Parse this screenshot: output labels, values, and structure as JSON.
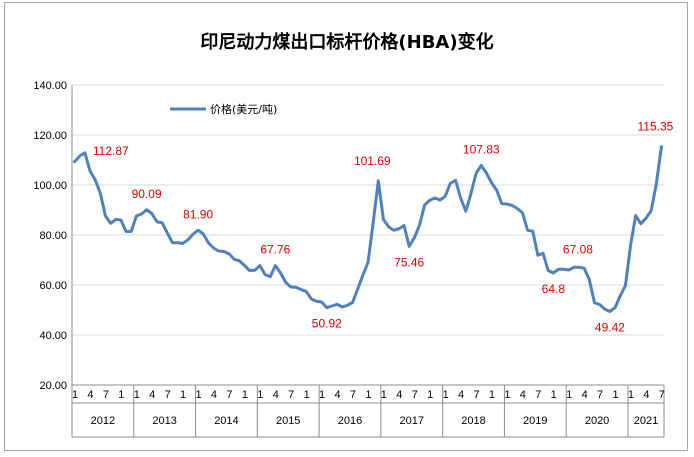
{
  "chart_data": {
    "type": "line",
    "title": "印尼动力煤出口标杆价格(HBA)变化",
    "legend": "价格(美元/吨)",
    "legend_position": "top-left",
    "series_color": "#4f81bd",
    "label_color": "#e00000",
    "ylim": [
      20,
      140
    ],
    "yticks": [
      "20.00",
      "40.00",
      "60.00",
      "80.00",
      "100.00",
      "120.00",
      "140.00"
    ],
    "gridlines": true,
    "years": [
      "2012",
      "2013",
      "2014",
      "2015",
      "2016",
      "2017",
      "2018",
      "2019",
      "2020",
      "2021"
    ],
    "month_ticks": [
      "1",
      "4",
      "7",
      "1"
    ],
    "last_year_ticks": [
      "1",
      "4",
      "7"
    ],
    "series": [
      {
        "name": "价格(美元/吨)",
        "values": [
          109.3,
          111.6,
          112.87,
          105.6,
          102.1,
          96.7,
          87.6,
          84.7,
          86.2,
          86.0,
          81.4,
          81.4,
          87.6,
          88.4,
          90.09,
          88.6,
          85.3,
          84.9,
          80.9,
          76.9,
          76.9,
          76.6,
          78.0,
          80.3,
          81.9,
          80.4,
          76.9,
          74.8,
          73.6,
          73.4,
          72.5,
          70.3,
          69.7,
          67.8,
          65.8,
          65.9,
          67.76,
          64.2,
          63.3,
          67.76,
          64.9,
          61.1,
          59.2,
          59.1,
          58.2,
          57.4,
          54.4,
          53.5,
          53.2,
          50.92,
          51.6,
          52.3,
          51.2,
          51.9,
          53.0,
          58.4,
          63.9,
          69.0,
          84.9,
          101.69,
          86.2,
          83.3,
          81.9,
          82.5,
          83.8,
          75.46,
          78.9,
          83.9,
          92.0,
          93.9,
          94.8,
          94.0,
          95.5,
          100.7,
          101.9,
          94.8,
          89.5,
          96.6,
          104.7,
          107.83,
          104.8,
          100.9,
          97.9,
          92.5,
          92.4,
          91.8,
          90.6,
          88.9,
          81.9,
          81.5,
          71.9,
          72.7,
          65.8,
          64.8,
          66.3,
          66.3,
          66.0,
          67.08,
          67.08,
          66.7,
          62.1,
          52.9,
          52.2,
          50.3,
          49.42,
          51.0,
          55.7,
          59.7,
          75.8,
          87.8,
          84.5,
          86.7,
          89.7,
          100.3,
          115.35
        ]
      }
    ],
    "annotations": [
      {
        "index": 2,
        "text": "112.87",
        "anchor": "right"
      },
      {
        "index": 14,
        "text": "90.09",
        "anchor": "above"
      },
      {
        "index": 24,
        "text": "81.90",
        "anchor": "above"
      },
      {
        "index": 39,
        "text": "67.76",
        "anchor": "above"
      },
      {
        "index": 49,
        "text": "50.92",
        "anchor": "below"
      },
      {
        "index": 59,
        "text": "101.69",
        "anchor": "above-left"
      },
      {
        "index": 65,
        "text": "75.46",
        "anchor": "below"
      },
      {
        "index": 79,
        "text": "107.83",
        "anchor": "above"
      },
      {
        "index": 93,
        "text": "64.8",
        "anchor": "below"
      },
      {
        "index": 97,
        "text": "67.08",
        "anchor": "above-right"
      },
      {
        "index": 104,
        "text": "49.42",
        "anchor": "below"
      },
      {
        "index": 114,
        "text": "115.35",
        "anchor": "above-left"
      }
    ]
  }
}
